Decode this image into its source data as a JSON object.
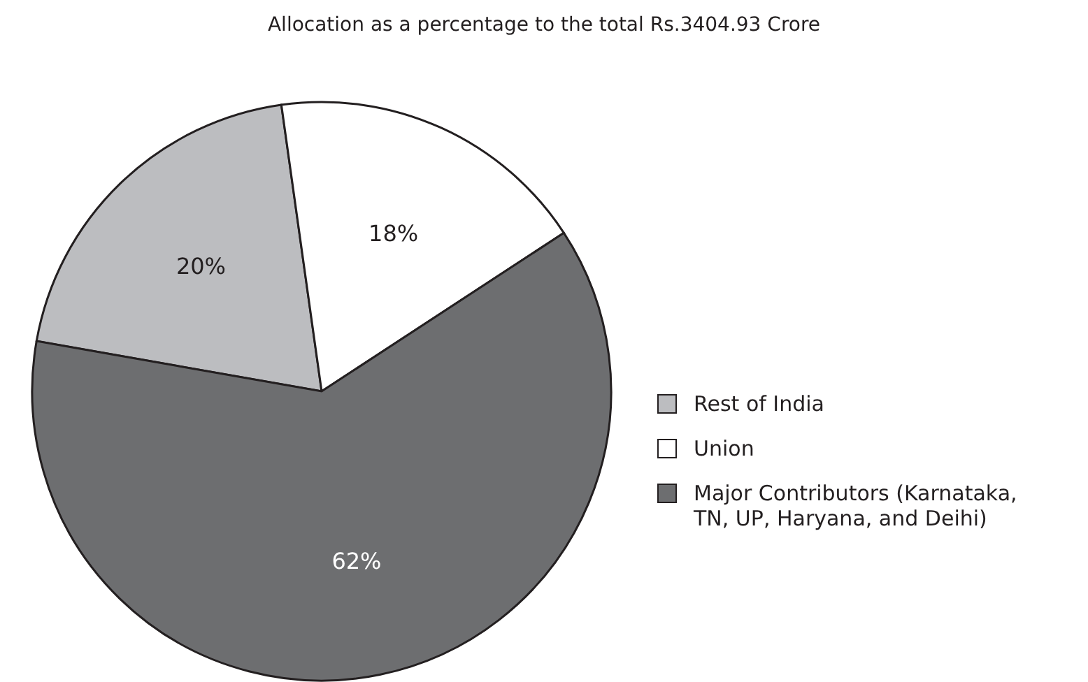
{
  "chart_data": {
    "type": "pie",
    "title": "Allocation as a percentage to the total Rs.3404.93 Crore",
    "categories": [
      "Rest of India",
      "Union",
      "Major Contributors (Karnataka, TN, UP, Haryana, and Deihi)"
    ],
    "values": [
      20,
      18,
      62
    ],
    "colors": [
      "#bcbdc0",
      "#ffffff",
      "#6d6e70"
    ],
    "value_labels": [
      "20%",
      "18%",
      "62%"
    ],
    "legend": "right"
  }
}
